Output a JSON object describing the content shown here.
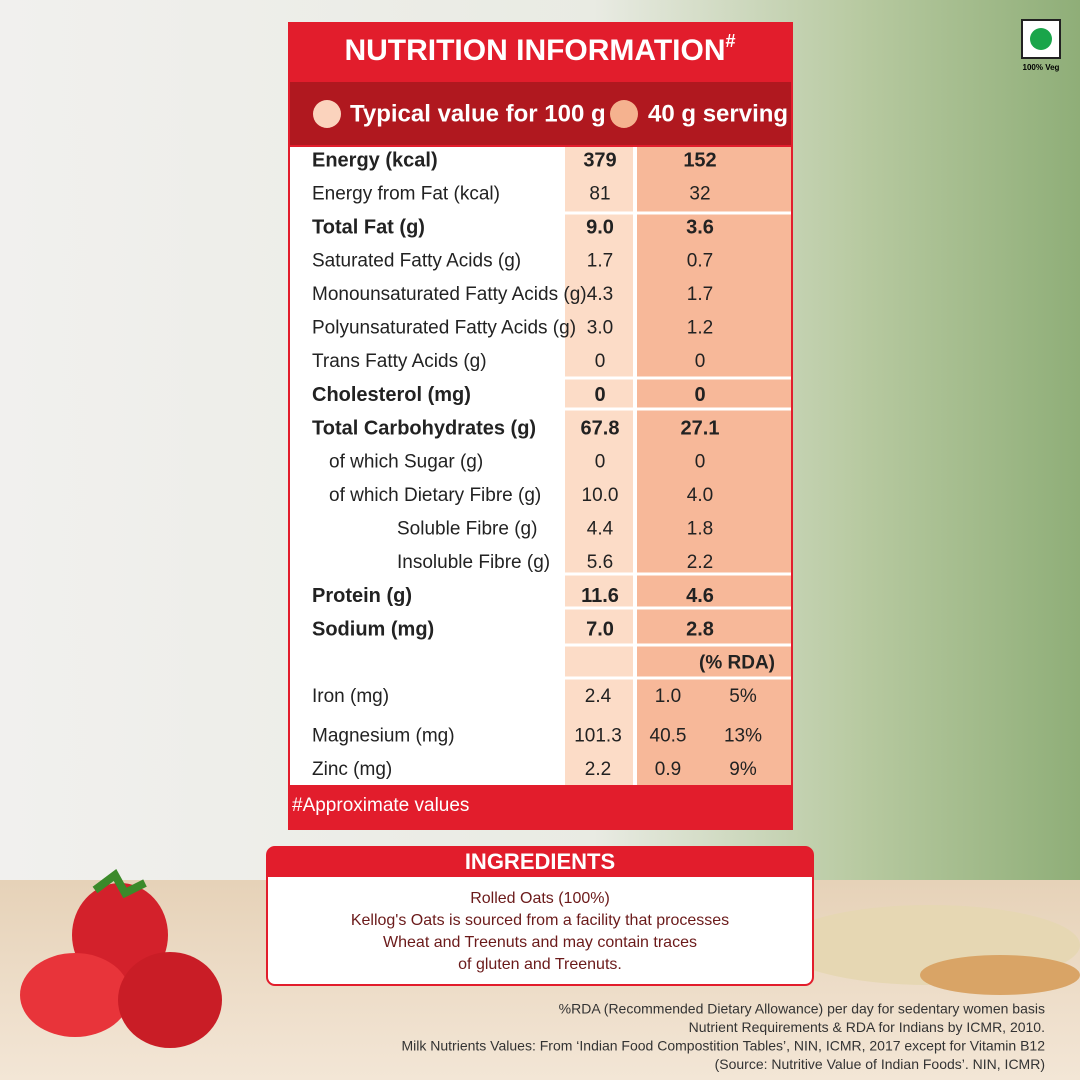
{
  "badge": "100% Veg",
  "header": {
    "title": "NUTRITION INFORMATION",
    "title_mark": "#",
    "columns": [
      "Typical value for 100 g",
      "40 g serving"
    ]
  },
  "table": {
    "rows": [
      {
        "name": "Energy (kcal)",
        "per_100g": "379",
        "per_serving": "152",
        "bold": true,
        "indent": 0
      },
      {
        "name": "Energy from Fat (kcal)",
        "per_100g": "81",
        "per_serving": "32",
        "bold": false,
        "indent": 0
      },
      {
        "name": "Total Fat (g)",
        "per_100g": "9.0",
        "per_serving": "3.6",
        "bold": true,
        "indent": 0
      },
      {
        "name": "Saturated Fatty Acids (g)",
        "per_100g": "1.7",
        "per_serving": "0.7",
        "bold": false,
        "indent": 0
      },
      {
        "name": "Monounsaturated Fatty Acids (g)",
        "per_100g": "4.3",
        "per_serving": "1.7",
        "bold": false,
        "indent": 0
      },
      {
        "name": "Polyunsaturated Fatty Acids (g)",
        "per_100g": "3.0",
        "per_serving": "1.2",
        "bold": false,
        "indent": 0
      },
      {
        "name": "Trans Fatty Acids (g)",
        "per_100g": "0",
        "per_serving": "0",
        "bold": false,
        "indent": 0
      },
      {
        "name": "Cholesterol (mg)",
        "per_100g": "0",
        "per_serving": "0",
        "bold": true,
        "indent": 0
      },
      {
        "name": "Total Carbohydrates (g)",
        "per_100g": "67.8",
        "per_serving": "27.1",
        "bold": true,
        "indent": 0
      },
      {
        "name": "of which Sugar (g)",
        "per_100g": "0",
        "per_serving": "0",
        "bold": false,
        "indent": 1
      },
      {
        "name": "of which Dietary Fibre (g)",
        "per_100g": "10.0",
        "per_serving": "4.0",
        "bold": false,
        "indent": 1
      },
      {
        "name": "Soluble Fibre (g)",
        "per_100g": "4.4",
        "per_serving": "1.8",
        "bold": false,
        "indent": 2
      },
      {
        "name": "Insoluble Fibre (g)",
        "per_100g": "5.6",
        "per_serving": "2.2",
        "bold": false,
        "indent": 2
      },
      {
        "name": "Protein (g)",
        "per_100g": "11.6",
        "per_serving": "4.6",
        "bold": true,
        "indent": 0
      },
      {
        "name": "Sodium (mg)",
        "per_100g": "7.0",
        "per_serving": "2.8",
        "bold": true,
        "indent": 0
      }
    ],
    "rda_header": "(% RDA)",
    "minerals": [
      {
        "name": "Iron (mg)",
        "per_100g": "2.4",
        "per_serving": "1.0",
        "rda": "5%"
      },
      {
        "name": "Magnesium (mg)",
        "per_100g": "101.3",
        "per_serving": "40.5",
        "rda": "13%"
      },
      {
        "name": "Zinc (mg)",
        "per_100g": "2.2",
        "per_serving": "0.9",
        "rda": "9%"
      }
    ],
    "footnote": "#Approximate values"
  },
  "ingredients": {
    "title": "INGREDIENTS",
    "lines": [
      "Rolled Oats (100%)",
      "Kellog's Oats is sourced from a facility that processes",
      "Wheat and Treenuts and may contain traces",
      "of gluten and Treenuts."
    ]
  },
  "footer": [
    "%RDA (Recommended Dietary Allowance) per day for sedentary women basis",
    "Nutrient Requirements & RDA for Indians by ICMR, 2010.",
    "Milk Nutrients Values: From ‘Indian Food Compostition Tables’, NIN, ICMR, 2017 except for Vitamin B12",
    "(Source: Nutritive Value of Indian Foods’. NIN, ICMR)"
  ]
}
